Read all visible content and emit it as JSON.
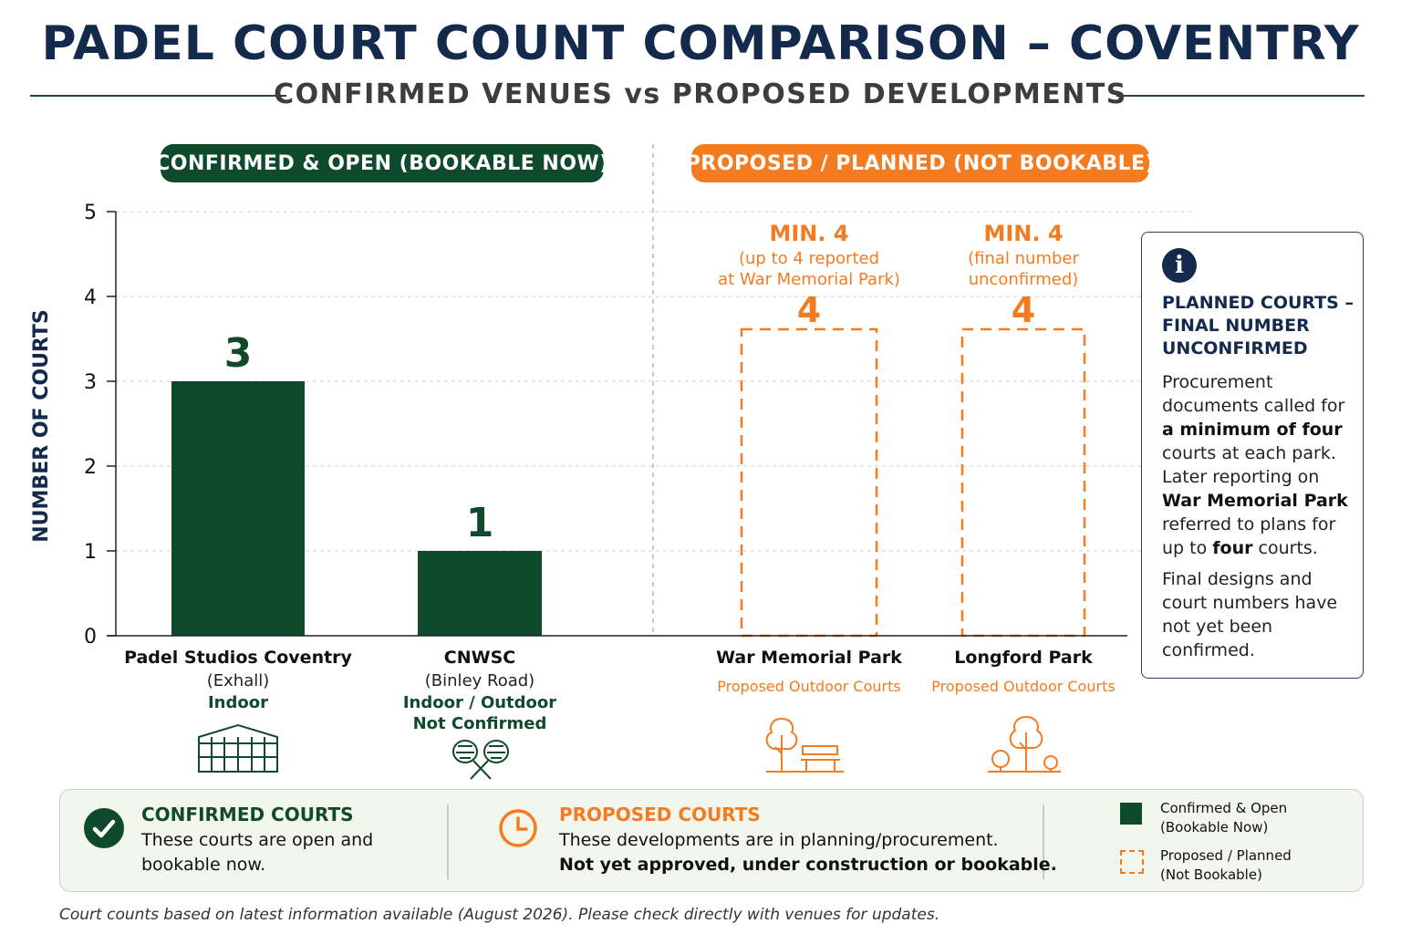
{
  "title": "PADEL COURT COUNT COMPARISON – COVENTRY",
  "subtitle": "CONFIRMED VENUES vs PROPOSED DEVELOPMENTS",
  "sections": {
    "confirmed_label": "CONFIRMED & OPEN (BOOKABLE NOW)",
    "proposed_label": "PROPOSED / PLANNED (NOT BOOKABLE)"
  },
  "chart_data": {
    "type": "bar",
    "ylabel": "NUMBER OF COURTS",
    "xlabel": "",
    "ylim": [
      0,
      5
    ],
    "yticks": [
      "0",
      "1",
      "2",
      "3",
      "4",
      "5"
    ],
    "grid": true,
    "categories": [
      "War Memorial Park",
      "Longford Park"
    ],
    "bars": [
      {
        "name": "Padel Studios Coventry",
        "sub": "(Exhall)",
        "type": "Indoor",
        "type2": "",
        "value": 3,
        "label": "3",
        "status": "confirmed",
        "icon": "indoor-hall-icon"
      },
      {
        "name": "CNWSC",
        "sub": "(Binley Road)",
        "type": "Indoor / Outdoor",
        "type2": "Not Confirmed",
        "value": 1,
        "label": "1",
        "status": "confirmed",
        "icon": "crossed-rackets-icon"
      },
      {
        "name": "War Memorial Park",
        "sub": "",
        "type": "Proposed Outdoor Courts",
        "type2": "",
        "value": 4,
        "label": "4",
        "status": "proposed",
        "annotation_head": "MIN. 4",
        "annotation_line1": "(up to 4 reported",
        "annotation_line2": "at War Memorial Park)",
        "icon": "tree-bench-icon"
      },
      {
        "name": "Longford Park",
        "sub": "",
        "type": "Proposed Outdoor Courts",
        "type2": "",
        "value": 4,
        "label": "4",
        "status": "proposed",
        "annotation_head": "MIN. 4",
        "annotation_line1": "(final number",
        "annotation_line2": "unconfirmed)",
        "icon": "park-trees-icon"
      }
    ],
    "colors": {
      "confirmed": "#0e4a2b",
      "proposed": "#f47b20"
    }
  },
  "info_box": {
    "icon": "info-icon",
    "icon_glyph": "i",
    "title": "PLANNED COURTS – FINAL NUMBER UNCONFIRMED",
    "p1_a": "Procurement documents called for ",
    "p1_b": "a minimum of four",
    "p1_c": " courts at each park. Later reporting on ",
    "p1_d": "War Memorial Park",
    "p1_e": " referred to plans for up to ",
    "p1_f": "four",
    "p1_g": " courts.",
    "p2": "Final designs and court numbers have not yet been confirmed."
  },
  "footer": {
    "confirmed_head": "CONFIRMED COURTS",
    "confirmed_line1": "These courts are open and",
    "confirmed_line2": "bookable now.",
    "proposed_head": "PROPOSED COURTS",
    "proposed_line1": "These developments are in planning/procurement.",
    "proposed_line2": "Not yet approved, under construction or bookable.",
    "legend": [
      {
        "line1": "Confirmed & Open",
        "line2": "(Bookable Now)"
      },
      {
        "line1": "Proposed / Planned",
        "line2": "(Not Bookable)"
      }
    ]
  },
  "note": "Court counts based on latest information available (August 2026). Please check directly with venues for updates."
}
